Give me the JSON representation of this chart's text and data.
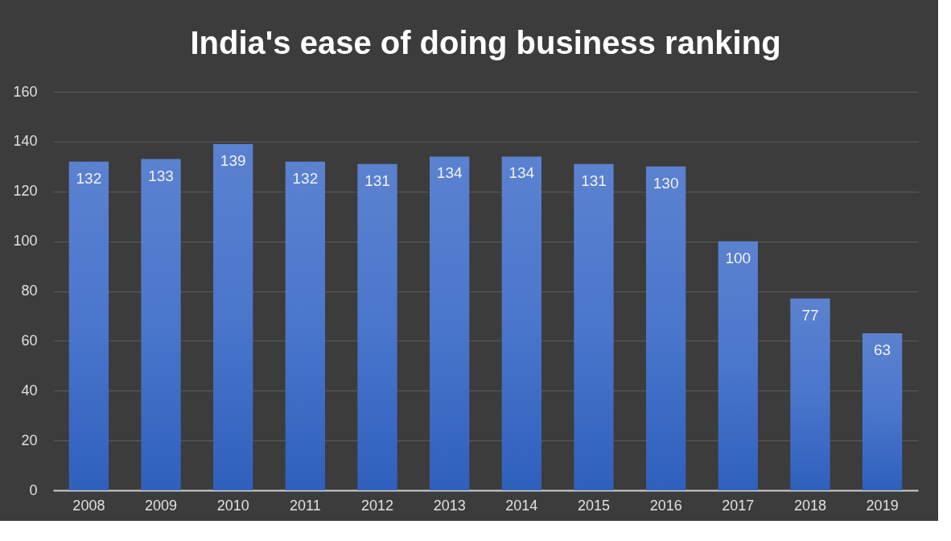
{
  "chart_data": {
    "type": "bar",
    "title": "India's ease of doing business ranking",
    "categories": [
      "2008",
      "2009",
      "2010",
      "2011",
      "2012",
      "2013",
      "2014",
      "2015",
      "2016",
      "2017",
      "2018",
      "2019"
    ],
    "values": [
      132,
      133,
      139,
      132,
      131,
      134,
      134,
      131,
      130,
      100,
      77,
      63
    ],
    "color": "#4a76cc",
    "ylim": [
      0,
      160
    ],
    "yticks": [
      0,
      20,
      40,
      60,
      80,
      100,
      120,
      140,
      160
    ],
    "grid": "y",
    "data_labels": true
  }
}
